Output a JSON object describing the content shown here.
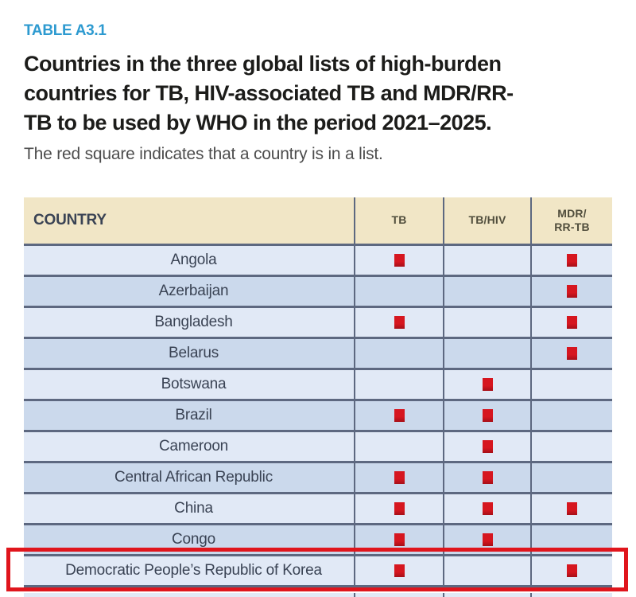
{
  "document": {
    "table_label": "TABLE A3.1",
    "title_lines": [
      "Countries in the three global lists of high-burden",
      "countries for TB, HIV-associated TB and MDR/RR-",
      "TB to be used by WHO in the period 2021–2025."
    ],
    "subtitle": "The red square indicates that a country is in a list."
  },
  "colors": {
    "accent_blue": "#2d9ad0",
    "title_text": "#1c1c1a",
    "subtitle_text": "#4d4d4d",
    "header_bg": "#f1e6c6",
    "header_text": "#504d3c",
    "row_light": "#e1e9f6",
    "row_dark": "#cbd9ec",
    "grid_border": "#5d6880",
    "marker_red": "#d6161f",
    "annotation_red": "#e0151c"
  },
  "chart_data": {
    "type": "table",
    "columns": [
      {
        "label": "COUNTRY",
        "align": "left"
      },
      {
        "label": "TB",
        "align": "center"
      },
      {
        "label": "TB/HIV",
        "align": "center"
      },
      {
        "label": "MDR/\nRR-TB",
        "align": "center"
      }
    ],
    "marker_meaning": "red square = country is in that list",
    "rows": [
      {
        "country": "Angola",
        "tb": true,
        "tb_hiv": false,
        "mdr_rr_tb": true,
        "highlighted": false
      },
      {
        "country": "Azerbaijan",
        "tb": false,
        "tb_hiv": false,
        "mdr_rr_tb": true,
        "highlighted": false
      },
      {
        "country": "Bangladesh",
        "tb": true,
        "tb_hiv": false,
        "mdr_rr_tb": true,
        "highlighted": false
      },
      {
        "country": "Belarus",
        "tb": false,
        "tb_hiv": false,
        "mdr_rr_tb": true,
        "highlighted": false
      },
      {
        "country": "Botswana",
        "tb": false,
        "tb_hiv": true,
        "mdr_rr_tb": false,
        "highlighted": false
      },
      {
        "country": "Brazil",
        "tb": true,
        "tb_hiv": true,
        "mdr_rr_tb": false,
        "highlighted": false
      },
      {
        "country": "Cameroon",
        "tb": false,
        "tb_hiv": true,
        "mdr_rr_tb": false,
        "highlighted": false
      },
      {
        "country": "Central African Republic",
        "tb": true,
        "tb_hiv": true,
        "mdr_rr_tb": false,
        "highlighted": false
      },
      {
        "country": "China",
        "tb": true,
        "tb_hiv": true,
        "mdr_rr_tb": true,
        "highlighted": false
      },
      {
        "country": "Congo",
        "tb": true,
        "tb_hiv": true,
        "mdr_rr_tb": false,
        "highlighted": false
      },
      {
        "country": "Democratic People’s Republic of Korea",
        "tb": true,
        "tb_hiv": false,
        "mdr_rr_tb": true,
        "highlighted": true
      }
    ]
  }
}
